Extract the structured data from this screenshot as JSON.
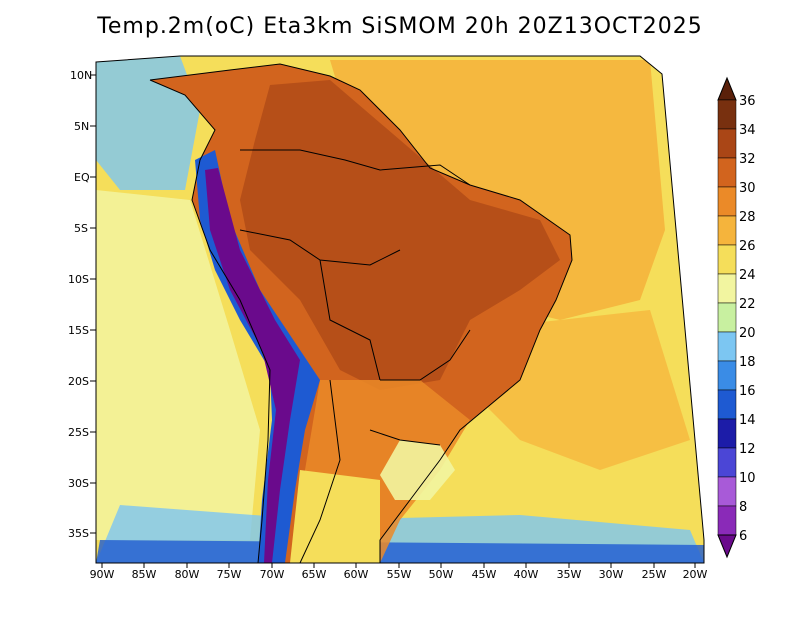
{
  "title": "Temp.2m(oC) Eta3km SiSMOM 20h 20Z13OCT2025",
  "lat_labels": [
    "10N",
    "5N",
    "EQ",
    "5S",
    "10S",
    "15S",
    "20S",
    "25S",
    "30S",
    "35S"
  ],
  "lon_labels": [
    "90W",
    "85W",
    "80W",
    "75W",
    "70W",
    "65W",
    "60W",
    "55W",
    "50W",
    "45W",
    "40W",
    "35W",
    "30W",
    "25W",
    "20W"
  ],
  "colorbar": {
    "labels": [
      "6",
      "8",
      "10",
      "12",
      "14",
      "16",
      "18",
      "20",
      "22",
      "24",
      "26",
      "28",
      "30",
      "32",
      "34",
      "36"
    ],
    "colors": [
      "#6a0a8c",
      "#8a2ab8",
      "#a85ad8",
      "#4b46d6",
      "#1c1ca8",
      "#1e5ad2",
      "#3a8ce6",
      "#7cc6f2",
      "#c8f0a0",
      "#f2f5a0",
      "#f5de5a",
      "#f5b43c",
      "#eb8a28",
      "#d2641e",
      "#aa4616",
      "#78300f",
      "#5a200a"
    ]
  },
  "palette": {
    "ocean_warm": "#f5b43c",
    "ocean_mild": "#f5de5a",
    "ocean_cool": "#f2f5a0",
    "land_hot": "#d2641e",
    "land_very_hot": "#aa4616",
    "land_warm": "#eb8a28",
    "andes_cold": "#1e5ad2",
    "andes_cool": "#7cc6f2",
    "andes_frigid": "#6a0a8c",
    "border": "#000000"
  }
}
